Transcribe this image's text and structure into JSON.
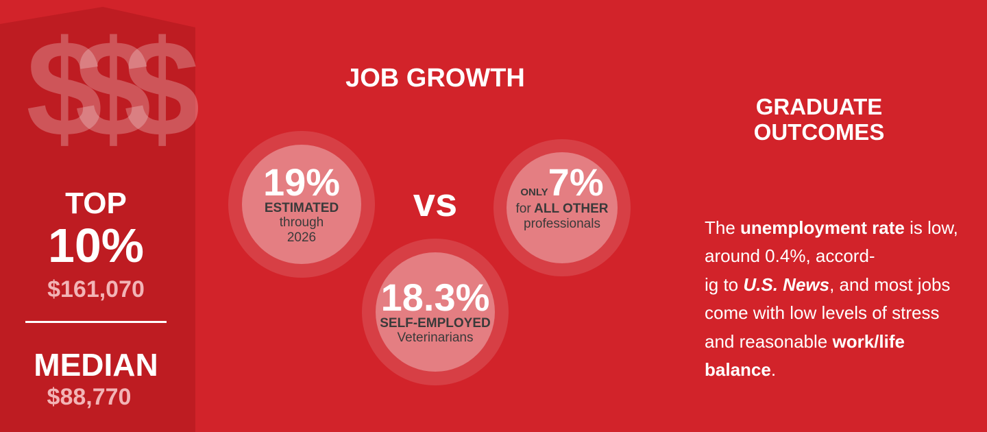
{
  "salary": {
    "icon": "$$$",
    "top": {
      "label": "TOP",
      "percent": "10%",
      "amount": "$161,070"
    },
    "median": {
      "label": "MEDIAN",
      "amount": "$88,770"
    }
  },
  "job_growth": {
    "title": "JOB GROWTH",
    "versus": "vs",
    "circles": [
      {
        "figure": "19%",
        "label": "ESTIMATED",
        "detail": "through 2026"
      },
      {
        "figure": "18.3%",
        "label": "SELF-EMPLOYED",
        "detail": "Veterinarians"
      },
      {
        "prefix": "ONLY",
        "figure": "7%",
        "detail_before": "for",
        "label": "ALL OTHER",
        "detail": "professionals"
      }
    ]
  },
  "graduate_outcomes": {
    "title": "GRADUATE OUTCOMES",
    "body": [
      "The ",
      "unemployment rate",
      " is low, around 0.4%, accord-\nig to ",
      "U.S. News",
      ", and most jobs come with low levels of stress and reasonable ",
      "work/life balance",
      "."
    ]
  }
}
